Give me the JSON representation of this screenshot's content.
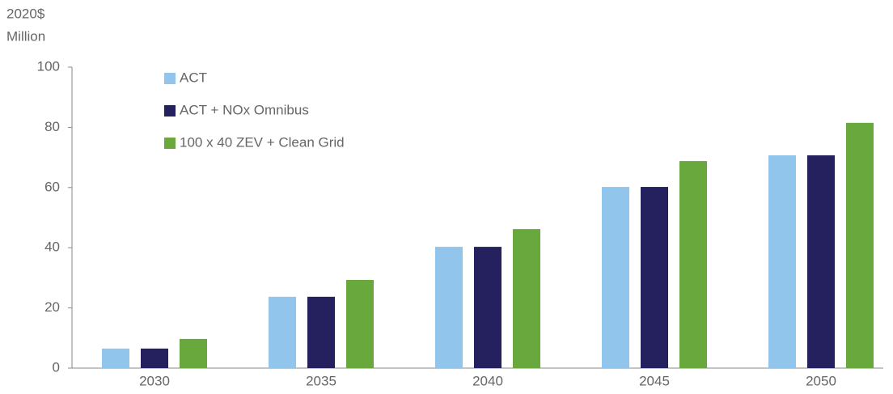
{
  "chart_data": {
    "type": "bar",
    "y_label": [
      "2020$",
      "Million"
    ],
    "categories": [
      "2030",
      "2035",
      "2040",
      "2045",
      "2050"
    ],
    "series": [
      {
        "name": "ACT",
        "color": "#92c5eb",
        "values": [
          6.5,
          23.7,
          40.3,
          60.2,
          70.7
        ]
      },
      {
        "name": "ACT + NOx Omnibus",
        "color": "#24215e",
        "values": [
          6.5,
          23.7,
          40.3,
          60.2,
          70.7
        ]
      },
      {
        "name": "100 x 40 ZEV + Clean Grid",
        "color": "#68a83d",
        "values": [
          9.7,
          29.3,
          46.2,
          68.8,
          81.5
        ]
      }
    ],
    "ylim": [
      0,
      100
    ],
    "yticks": [
      0,
      20,
      40,
      60,
      80,
      100
    ],
    "grid": false,
    "legend": "top-left"
  }
}
